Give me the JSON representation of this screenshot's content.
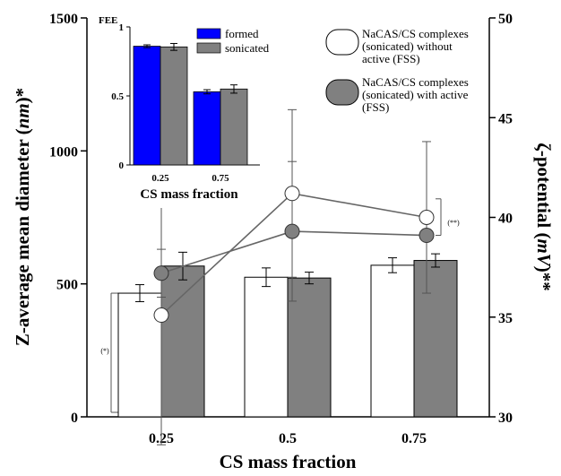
{
  "chart_data": [
    {
      "type": "bar",
      "xlabel": "CS mass fraction",
      "ylabel_left_parts": [
        "Z-average mean diameter (",
        "nm",
        ")*"
      ],
      "ylabel_right_parts": [
        "ζ-potential (",
        "mV",
        ")**"
      ],
      "categories": [
        "0.25",
        "0.5",
        "0.75"
      ],
      "ylim_left": [
        0,
        1500
      ],
      "yticks_left": [
        "0",
        "500",
        "1000",
        "1500"
      ],
      "ylim_right": [
        30,
        50
      ],
      "yticks_right": [
        "30",
        "35",
        "40",
        "45",
        "50"
      ],
      "series": [
        {
          "name": "NaCAS/CS complexes (sonicated) without active (FSS)",
          "kind": "bar",
          "color": "#ffffff",
          "values": [
            465,
            525,
            570
          ],
          "errors": [
            32,
            35,
            28
          ]
        },
        {
          "name": "NaCAS/CS complexes (sonicated) with active (FSS)",
          "kind": "bar",
          "color": "#808080",
          "values": [
            567,
            522,
            588
          ],
          "errors": [
            52,
            22,
            25
          ]
        },
        {
          "kind": "line",
          "axis": "right",
          "color": "#ffffff",
          "values": [
            35.1,
            41.2,
            40.0
          ],
          "errors": [
            6.5,
            4.2,
            3.8
          ]
        },
        {
          "kind": "line",
          "axis": "right",
          "color": "#808080",
          "values": [
            37.2,
            39.3,
            39.1
          ],
          "errors": [
            1.2,
            3.5,
            0
          ]
        }
      ],
      "legend": {
        "entries": [
          [
            "NaCAS/CS complexes",
            "(sonicated) without",
            "active (FSS)"
          ],
          [
            "NaCAS/CS complexes",
            "(sonicated) with active",
            "(FSS)"
          ]
        ],
        "placement": "top-right"
      },
      "annotations": [
        {
          "text": "(*)",
          "near": "0.25 bars, left bracket"
        },
        {
          "text": "(**)",
          "near": "0.75 points, right bracket"
        }
      ]
    },
    {
      "type": "bar",
      "inset": true,
      "xlabel": "CS mass fraction",
      "ylabel": "FEE",
      "categories": [
        "0.25",
        "0.75"
      ],
      "ylim": [
        0,
        1
      ],
      "yticks": [
        "0",
        "0.5",
        "1"
      ],
      "series": [
        {
          "name": "formed",
          "color": "#0000ff",
          "values": [
            0.86,
            0.53
          ],
          "errors": [
            0.01,
            0.015
          ]
        },
        {
          "name": "sonicated",
          "color": "#808080",
          "values": [
            0.855,
            0.55
          ],
          "errors": [
            0.025,
            0.03
          ]
        }
      ],
      "legend_placement": "top-right"
    }
  ]
}
